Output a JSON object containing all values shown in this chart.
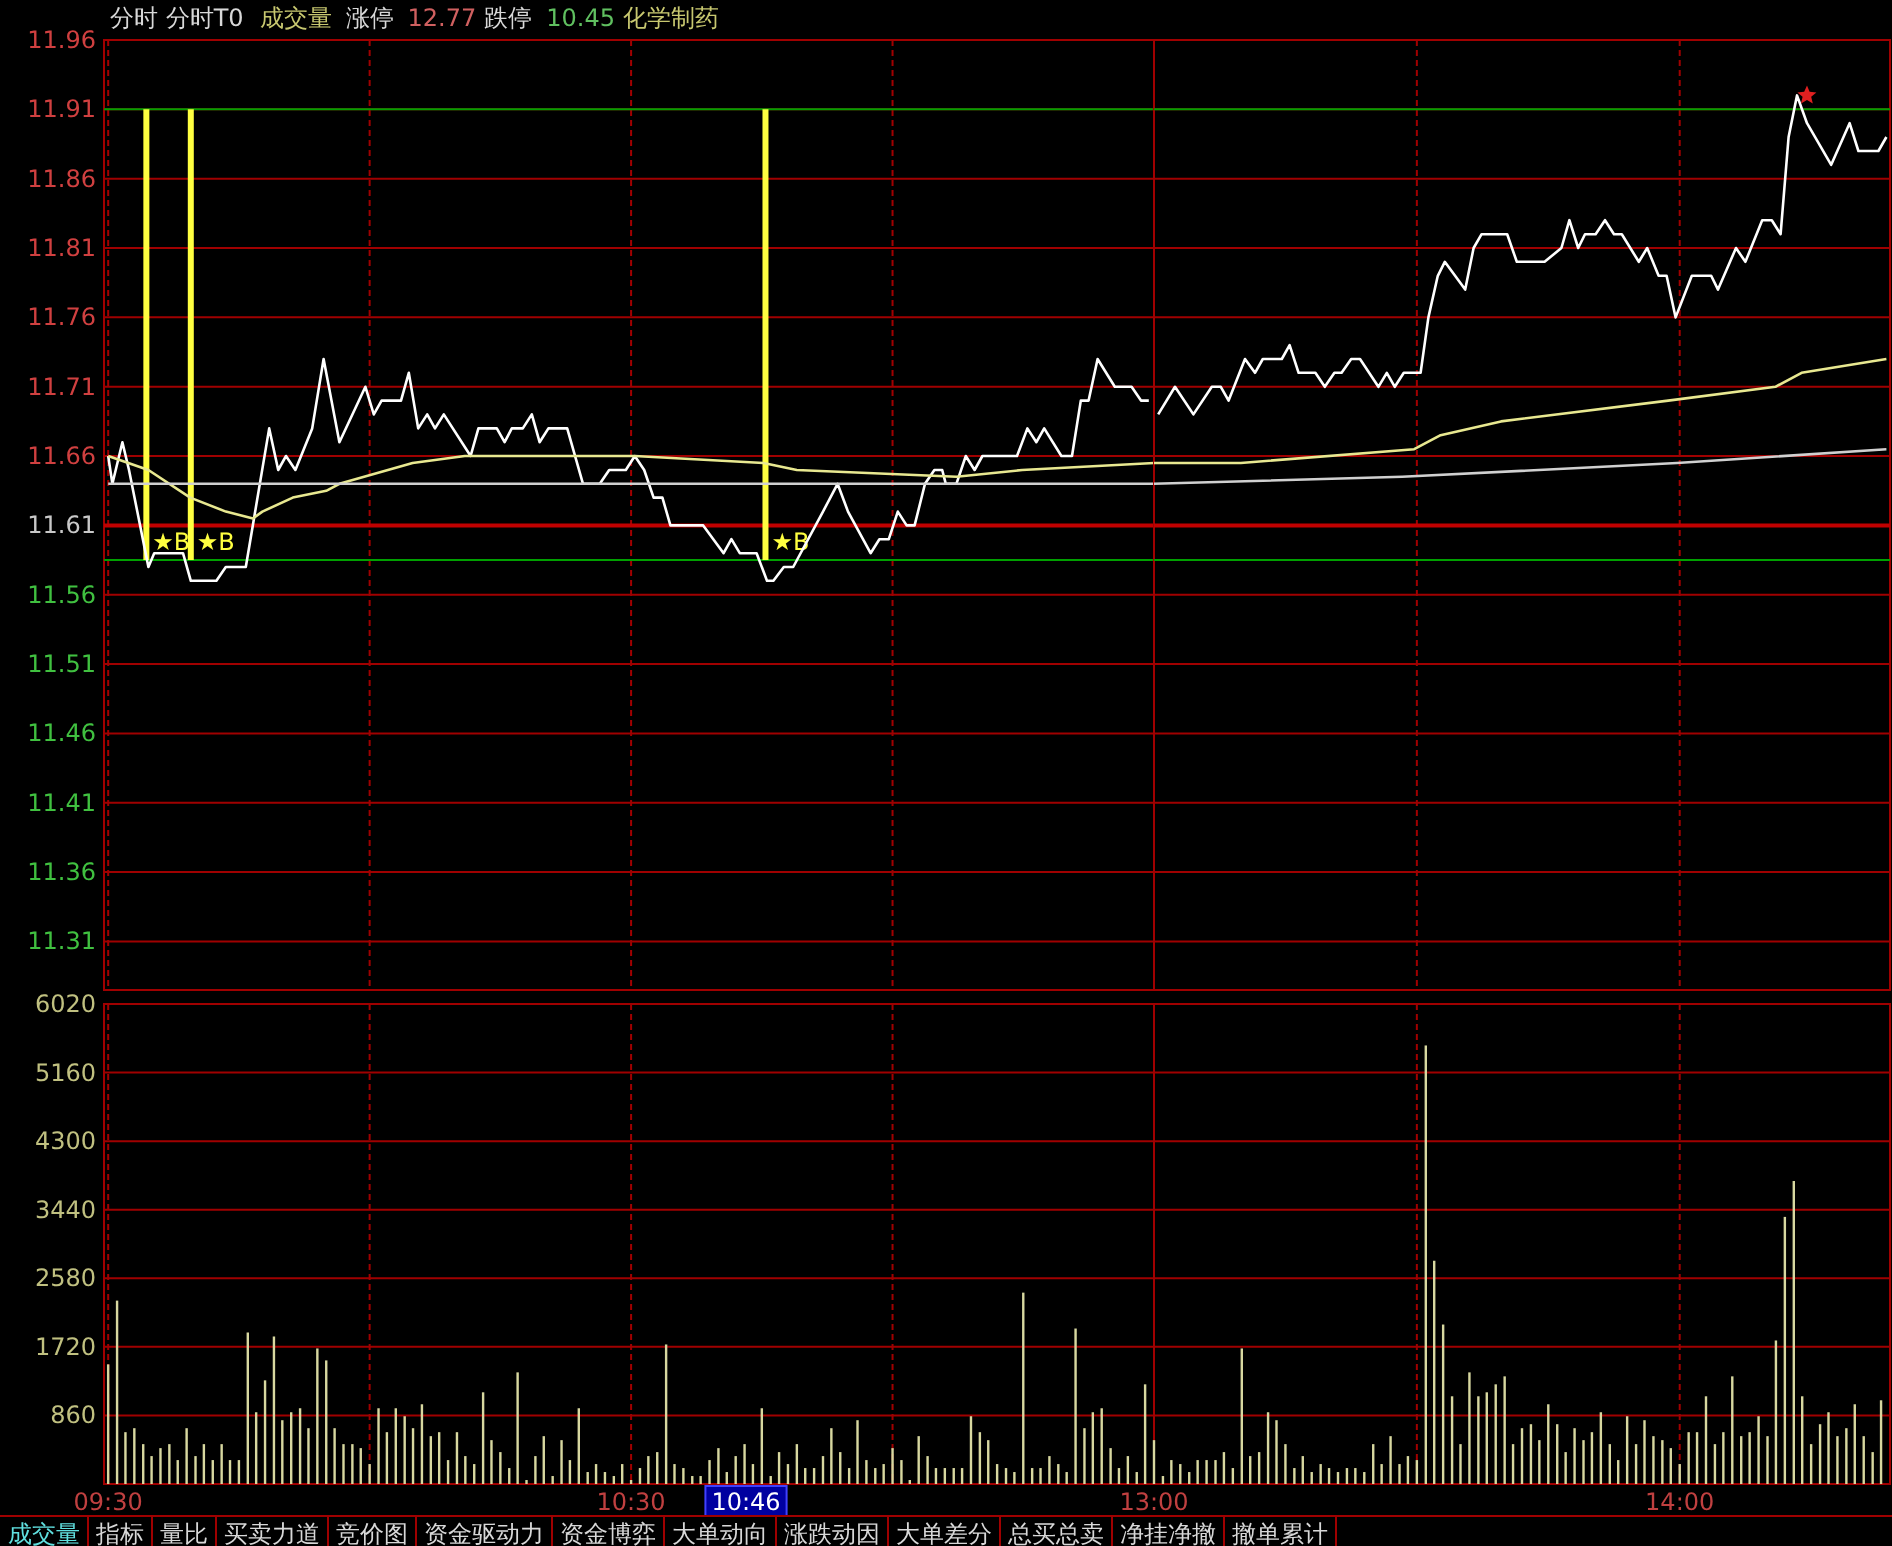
{
  "chart_data": [
    {
      "type": "line",
      "title": "分时 分时T0",
      "annotations": [
        "成交量",
        "涨停",
        "12.77",
        "跌停",
        "10.45",
        "化学制药"
      ],
      "series": [
        {
          "color": "#ffffff",
          "x": [
            9.5,
            9.508,
            9.527,
            9.54,
            9.577,
            9.588,
            9.643,
            9.658,
            9.707,
            9.725,
            9.763,
            9.808,
            9.825,
            9.84,
            9.858,
            9.89,
            9.912,
            9.942,
            9.992,
            10.008,
            10.023,
            10.06,
            10.075,
            10.093,
            10.11,
            10.125,
            10.142,
            10.193,
            10.208,
            10.243,
            10.258,
            10.272,
            10.293,
            10.31,
            10.325,
            10.342,
            10.378,
            10.408,
            10.44,
            10.458,
            10.49,
            10.507,
            10.525,
            10.543,
            10.56,
            10.575,
            10.638,
            10.677,
            10.692,
            10.708,
            10.74,
            10.76,
            10.772,
            10.792,
            10.81,
            10.867,
            10.895,
            10.915,
            10.958,
            10.975,
            10.993,
            11.01,
            11.027,
            11.042,
            11.062,
            11.08,
            11.095,
            11.102,
            11.122,
            11.14,
            11.157,
            11.172,
            11.238,
            11.258,
            11.275,
            11.29,
            11.323,
            11.343,
            11.36,
            11.375,
            11.392,
            11.425,
            11.457,
            11.475,
            11.49
          ],
          "values": [
            11.66,
            11.64,
            11.67,
            11.65,
            11.58,
            11.59,
            11.59,
            11.57,
            11.57,
            11.58,
            11.58,
            11.68,
            11.65,
            11.66,
            11.65,
            11.68,
            11.73,
            11.67,
            11.71,
            11.69,
            11.7,
            11.7,
            11.72,
            11.68,
            11.69,
            11.68,
            11.69,
            11.66,
            11.68,
            11.68,
            11.67,
            11.68,
            11.68,
            11.69,
            11.67,
            11.68,
            11.68,
            11.64,
            11.64,
            11.65,
            11.65,
            11.66,
            11.65,
            11.63,
            11.63,
            11.61,
            11.61,
            11.59,
            11.6,
            11.59,
            11.59,
            11.57,
            11.57,
            11.58,
            11.58,
            11.62,
            11.64,
            11.62,
            11.59,
            11.6,
            11.6,
            11.62,
            11.61,
            11.61,
            11.64,
            11.65,
            11.65,
            11.64,
            11.64,
            11.66,
            11.65,
            11.66,
            11.66,
            11.68,
            11.67,
            11.68,
            11.66,
            11.66,
            11.7,
            11.7,
            11.73,
            11.71,
            11.71,
            11.7,
            11.7
          ]
        },
        {
          "color": "#e8e890",
          "x": [
            9.5,
            9.577,
            9.657,
            9.725,
            9.777,
            9.795,
            9.853,
            9.917,
            9.942,
            10.082,
            10.182,
            10.335,
            10.507,
            10.753,
            10.817,
            11.122,
            11.248,
            11.5
          ],
          "values": [
            11.66,
            11.65,
            11.63,
            11.62,
            11.615,
            11.62,
            11.63,
            11.635,
            11.64,
            11.655,
            11.66,
            11.66,
            11.66,
            11.655,
            11.65,
            11.645,
            11.65,
            11.655
          ]
        },
        {
          "color": "#d0d0d0",
          "x": [
            9.5,
            10.5,
            11.122,
            11.5
          ],
          "values": [
            11.64,
            11.64,
            11.64,
            11.64
          ]
        }
      ],
      "xlim": [
        9.492,
        11.5
      ],
      "ylim": [
        11.275,
        11.96
      ],
      "xticks": [
        {
          "value": 9.5,
          "label": null
        },
        {
          "value": 10,
          "label": null
        },
        {
          "value": 10.5,
          "label": null
        },
        {
          "value": 11,
          "label": null
        }
      ],
      "yticks": [
        11.96,
        11.91,
        11.86,
        11.81,
        11.76,
        11.71,
        11.66,
        11.61,
        11.56,
        11.51,
        11.46,
        11.41,
        11.36,
        11.31
      ],
      "ref_lines": [
        {
          "axis": "y",
          "value": 11.61,
          "color": "#c00000"
        },
        {
          "axis": "y",
          "value": 11.91,
          "color": "#00a000"
        },
        {
          "axis": "y",
          "value": 11.585,
          "color": "#00a000"
        },
        {
          "axis": "x",
          "value": 9.573,
          "label": "★B",
          "color": "#ffff40"
        },
        {
          "axis": "x",
          "value": 9.658,
          "label": "★B",
          "color": "#ffff40"
        },
        {
          "axis": "x",
          "value": 10.757,
          "label": "★B",
          "color": "#ffff40"
        }
      ],
      "grid": true,
      "tick_labels": "y"
    },
    {
      "type": "line",
      "series": [
        {
          "color": "#ffffff",
          "x": [
            13.008,
            13.04,
            13.075,
            13.11,
            13.127,
            13.142,
            13.173,
            13.192,
            13.207,
            13.243,
            13.258,
            13.275,
            13.307,
            13.325,
            13.343,
            13.357,
            13.375,
            13.392,
            13.427,
            13.443,
            13.458,
            13.475,
            13.507,
            13.522,
            13.54,
            13.553,
            13.592,
            13.608,
            13.623,
            13.672,
            13.69,
            13.743,
            13.775,
            13.79,
            13.807,
            13.82,
            13.84,
            13.858,
            13.875,
            13.89,
            13.922,
            13.938,
            13.96,
            13.975,
            13.992,
            14.023,
            14.06,
            14.073,
            14.107,
            14.125,
            14.157,
            14.175,
            14.192,
            14.207,
            14.223,
            14.242,
            14.288,
            14.323,
            14.34,
            14.378,
            14.393
          ],
          "values": [
            11.69,
            11.71,
            11.69,
            11.71,
            11.71,
            11.7,
            11.73,
            11.72,
            11.73,
            11.73,
            11.74,
            11.72,
            11.72,
            11.71,
            11.72,
            11.72,
            11.73,
            11.73,
            11.71,
            11.72,
            11.71,
            11.72,
            11.72,
            11.76,
            11.79,
            11.8,
            11.78,
            11.81,
            11.82,
            11.82,
            11.8,
            11.8,
            11.81,
            11.83,
            11.81,
            11.82,
            11.82,
            11.83,
            11.82,
            11.82,
            11.8,
            11.81,
            11.79,
            11.79,
            11.76,
            11.79,
            11.79,
            11.78,
            11.81,
            11.8,
            11.83,
            11.83,
            11.82,
            11.89,
            11.92,
            11.9,
            11.87,
            11.9,
            11.88,
            11.88,
            11.89
          ]
        },
        {
          "color": "#e8e890",
          "x": [
            13,
            13.165,
            13.495,
            13.545,
            13.66,
            13.978,
            14.182,
            14.232,
            14.393
          ],
          "values": [
            11.655,
            11.655,
            11.665,
            11.675,
            11.685,
            11.7,
            11.71,
            11.72,
            11.73
          ]
        },
        {
          "color": "#d0d0d0",
          "x": [
            13,
            13.472,
            13.995,
            14.393
          ],
          "values": [
            11.64,
            11.645,
            11.655,
            11.665
          ]
        },
        {
          "type": "scatter",
          "color": "#e02020",
          "marker": "star",
          "x": [
            14.242
          ],
          "values": [
            11.92
          ]
        }
      ],
      "xlim": [
        13,
        14.4
      ],
      "ylim": [
        11.275,
        11.96
      ],
      "xticks": [
        {
          "value": 13,
          "label": null
        },
        {
          "value": 13.5,
          "label": null
        },
        {
          "value": 14,
          "label": null
        }
      ],
      "yticks": [
        11.96,
        11.91,
        11.86,
        11.81,
        11.76,
        11.71,
        11.66,
        11.61,
        11.56,
        11.51,
        11.46,
        11.41,
        11.36,
        11.31
      ],
      "ref_lines": [
        {
          "axis": "y",
          "value": 11.61,
          "color": "#c00000"
        },
        {
          "axis": "y",
          "value": 11.91,
          "color": "#00a000"
        },
        {
          "axis": "y",
          "value": 11.585,
          "color": "#00a000"
        }
      ],
      "grid": true,
      "tick_labels": false
    },
    {
      "type": "bar",
      "color": "#d8d8a0",
      "x": [
        9.5,
        9.517,
        9.533,
        9.55,
        9.567,
        9.583,
        9.6,
        9.617,
        9.633,
        9.65,
        9.667,
        9.683,
        9.7,
        9.717,
        9.733,
        9.75,
        9.767,
        9.783,
        9.8,
        9.817,
        9.833,
        9.85,
        9.867,
        9.883,
        9.9,
        9.917,
        9.933,
        9.95,
        9.967,
        9.983,
        10,
        10.017,
        10.033,
        10.05,
        10.067,
        10.083,
        10.1,
        10.117,
        10.133,
        10.15,
        10.167,
        10.183,
        10.2,
        10.217,
        10.233,
        10.25,
        10.267,
        10.283,
        10.3,
        10.317,
        10.333,
        10.35,
        10.367,
        10.383,
        10.4,
        10.417,
        10.433,
        10.45,
        10.467,
        10.483,
        10.5,
        10.517,
        10.533,
        10.55,
        10.567,
        10.583,
        10.6,
        10.617,
        10.633,
        10.65,
        10.667,
        10.683,
        10.7,
        10.717,
        10.733,
        10.75,
        10.767,
        10.783,
        10.8,
        10.817,
        10.833,
        10.85,
        10.867,
        10.883,
        10.9,
        10.917,
        10.933,
        10.95,
        10.967,
        10.983,
        11,
        11.017,
        11.033,
        11.05,
        11.067,
        11.083,
        11.1,
        11.117,
        11.133,
        11.15,
        11.167,
        11.183,
        11.2,
        11.217,
        11.233,
        11.25,
        11.267,
        11.283,
        11.3,
        11.317,
        11.333,
        11.35,
        11.367,
        11.383,
        11.4,
        11.417,
        11.433,
        11.45,
        11.467,
        11.483
      ],
      "values": [
        1500,
        2300,
        650,
        700,
        500,
        350,
        450,
        500,
        300,
        700,
        350,
        500,
        300,
        500,
        300,
        300,
        1900,
        900,
        1300,
        1850,
        800,
        900,
        950,
        700,
        1700,
        1550,
        700,
        500,
        500,
        450,
        250,
        950,
        650,
        950,
        850,
        700,
        1000,
        600,
        650,
        300,
        650,
        350,
        250,
        1150,
        550,
        400,
        200,
        1400,
        50,
        350,
        600,
        100,
        550,
        300,
        950,
        150,
        250,
        150,
        100,
        250,
        50,
        200,
        350,
        400,
        1750,
        250,
        200,
        100,
        100,
        300,
        450,
        150,
        350,
        500,
        250,
        950,
        100,
        400,
        250,
        500,
        200,
        200,
        350,
        700,
        400,
        200,
        800,
        300,
        200,
        250,
        450,
        300,
        50,
        600,
        350,
        200,
        200,
        200,
        200,
        850,
        650,
        550,
        250,
        200,
        150,
        2400,
        200,
        200,
        350,
        250,
        150,
        1950,
        700,
        900,
        950,
        450,
        200,
        350,
        150,
        1250
      ],
      "xlim": [
        9.492,
        11.5
      ],
      "ylim": [
        0,
        6020
      ],
      "xticks": [
        {
          "value": 9.5,
          "label": "09:30"
        },
        {
          "value": 10,
          "label": null
        },
        {
          "value": 10.5,
          "label": "10:30"
        },
        {
          "value": 11,
          "label": null
        }
      ],
      "yticks": [
        860,
        1720,
        2580,
        3440,
        4300,
        5160,
        6020
      ],
      "annotations": [
        "10:46"
      ],
      "grid": true
    },
    {
      "type": "bar",
      "color": "#d8d8a0",
      "x": [
        13,
        13.017,
        13.033,
        13.05,
        13.067,
        13.083,
        13.1,
        13.117,
        13.133,
        13.15,
        13.167,
        13.183,
        13.2,
        13.217,
        13.233,
        13.25,
        13.267,
        13.283,
        13.3,
        13.317,
        13.333,
        13.35,
        13.367,
        13.383,
        13.4,
        13.417,
        13.433,
        13.45,
        13.467,
        13.483,
        13.5,
        13.517,
        13.533,
        13.55,
        13.567,
        13.583,
        13.6,
        13.617,
        13.633,
        13.65,
        13.667,
        13.683,
        13.7,
        13.717,
        13.733,
        13.75,
        13.767,
        13.783,
        13.8,
        13.817,
        13.833,
        13.85,
        13.867,
        13.883,
        13.9,
        13.917,
        13.933,
        13.95,
        13.967,
        13.983,
        14,
        14.017,
        14.033,
        14.05,
        14.067,
        14.083,
        14.1,
        14.117,
        14.133,
        14.15,
        14.167,
        14.183,
        14.2,
        14.217,
        14.233,
        14.25,
        14.267,
        14.283,
        14.3,
        14.317,
        14.333,
        14.35,
        14.367,
        14.383
      ],
      "values": [
        550,
        100,
        300,
        250,
        150,
        300,
        300,
        300,
        400,
        200,
        1700,
        350,
        400,
        900,
        800,
        500,
        200,
        350,
        150,
        250,
        200,
        150,
        200,
        200,
        150,
        500,
        250,
        600,
        250,
        350,
        300,
        5500,
        2800,
        2000,
        1100,
        500,
        1400,
        1100,
        1150,
        1250,
        1350,
        500,
        700,
        750,
        550,
        1000,
        750,
        400,
        700,
        550,
        650,
        900,
        500,
        300,
        850,
        500,
        800,
        600,
        550,
        450,
        250,
        650,
        650,
        1100,
        500,
        650,
        1350,
        600,
        650,
        850,
        600,
        1800,
        3350,
        3800,
        1100,
        500,
        750,
        900,
        600,
        700,
        1000,
        600,
        400,
        1050
      ],
      "xlim": [
        13,
        14.4
      ],
      "ylim": [
        0,
        6020
      ],
      "xticks": [
        {
          "value": 13,
          "label": "13:00"
        },
        {
          "value": 13.5,
          "label": null
        },
        {
          "value": 14,
          "label": "14:00"
        }
      ],
      "yticks": [
        860,
        1720,
        2580,
        3440,
        4300,
        5160,
        6020
      ],
      "annotations": [
        "成交量",
        "指标",
        "量比",
        "买卖力道",
        "竞价图",
        "资金驱动力",
        "资金博弈",
        "大单动向",
        "涨跌动因",
        "大单差分",
        "总买总卖",
        "净挂净撤",
        "撤单累计"
      ],
      "grid": true,
      "tick_labels": "x"
    }
  ]
}
